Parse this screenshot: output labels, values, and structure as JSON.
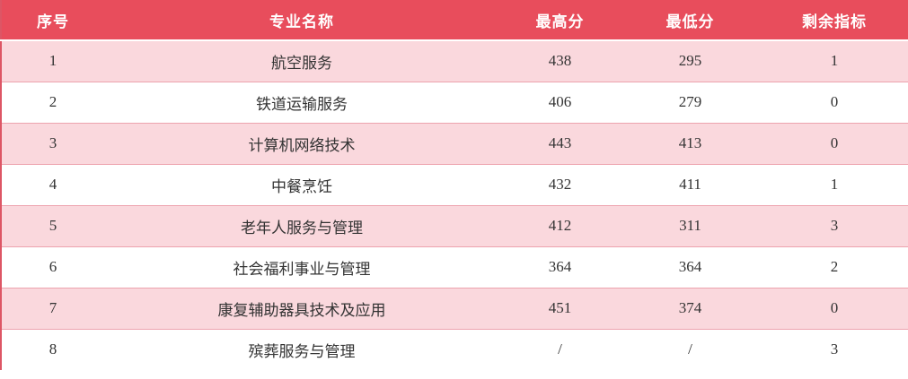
{
  "table": {
    "headers": [
      "序号",
      "专业名称",
      "最高分",
      "最低分",
      "剩余指标"
    ],
    "rows": [
      [
        "1",
        "航空服务",
        "438",
        "295",
        "1"
      ],
      [
        "2",
        "铁道运输服务",
        "406",
        "279",
        "0"
      ],
      [
        "3",
        "计算机网络技术",
        "443",
        "413",
        "0"
      ],
      [
        "4",
        "中餐烹饪",
        "432",
        "411",
        "1"
      ],
      [
        "5",
        "老年人服务与管理",
        "412",
        "311",
        "3"
      ],
      [
        "6",
        "社会福利事业与管理",
        "364",
        "364",
        "2"
      ],
      [
        "7",
        "康复辅助器具技术及应用",
        "451",
        "374",
        "0"
      ],
      [
        "8",
        "殡葬服务与管理",
        "/",
        "/",
        "3"
      ]
    ]
  },
  "colors": {
    "header_bg": "#e84d5c",
    "header_text": "#ffffff",
    "row_pink": "#fad8dd",
    "row_white": "#ffffff",
    "row_border": "#eda3ae",
    "left_border": "#dd5665",
    "body_text": "#333333"
  }
}
